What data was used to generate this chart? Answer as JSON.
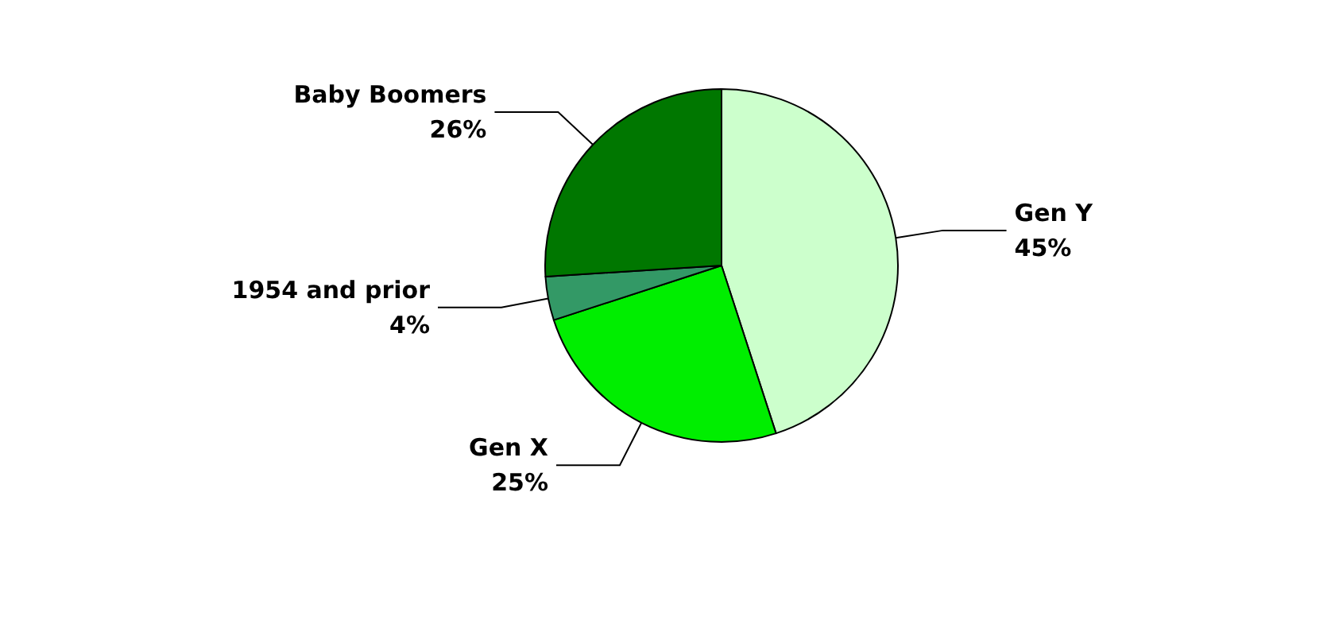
{
  "chart_data": {
    "type": "pie",
    "categories": [
      "Gen Y",
      "Gen X",
      "1954 and prior",
      "Baby Boomers"
    ],
    "values": [
      45,
      25,
      4,
      26
    ],
    "value_labels": [
      "45%",
      "25%",
      "4%",
      "26%"
    ],
    "colors": [
      "#ccffcc",
      "#00ee00",
      "#339966",
      "#007700"
    ],
    "legend": false
  }
}
